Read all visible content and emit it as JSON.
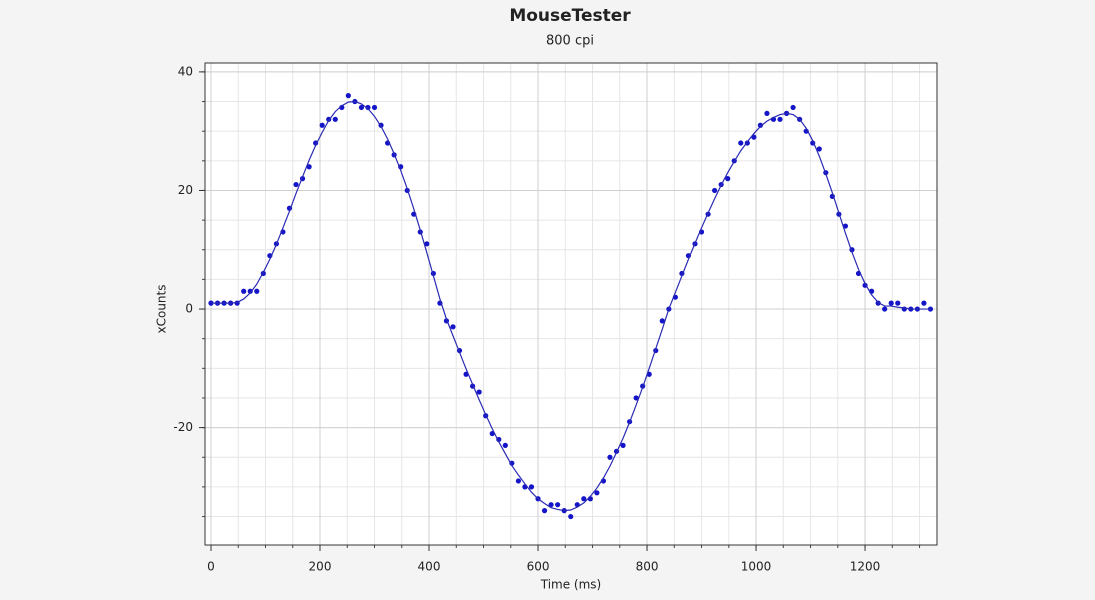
{
  "chart_data": {
    "type": "scatter",
    "title": "MouseTester",
    "subtitle": "800 cpi",
    "x_label": "Time (ms)",
    "y_label": "xCounts",
    "xlim": [
      -11,
      1332
    ],
    "ylim": [
      -39.8,
      41.5
    ],
    "xticks": [
      0,
      200,
      400,
      600,
      800,
      1000,
      1200
    ],
    "yticks": [
      -20,
      0,
      20,
      40
    ],
    "grid": true,
    "x": [
      0,
      12,
      24,
      36,
      48,
      60,
      72,
      84,
      96,
      108,
      120,
      132,
      144,
      156,
      168,
      180,
      192,
      204,
      216,
      228,
      240,
      252,
      264,
      276,
      288,
      300,
      312,
      324,
      336,
      348,
      360,
      372,
      384,
      396,
      408,
      420,
      432,
      444,
      456,
      468,
      480,
      492,
      504,
      516,
      528,
      540,
      552,
      564,
      576,
      588,
      600,
      612,
      624,
      636,
      648,
      660,
      672,
      684,
      696,
      708,
      720,
      732,
      744,
      756,
      768,
      780,
      792,
      804,
      816,
      828,
      840,
      852,
      864,
      876,
      888,
      900,
      912,
      924,
      936,
      948,
      960,
      972,
      984,
      996,
      1008,
      1020,
      1032,
      1044,
      1056,
      1068,
      1080,
      1092,
      1104,
      1116,
      1128,
      1140,
      1152,
      1164,
      1176,
      1188,
      1200,
      1212,
      1224,
      1236,
      1248,
      1260,
      1272,
      1284,
      1296,
      1308,
      1320
    ],
    "series": [
      {
        "style": "dots",
        "color": "#1414c8",
        "values": [
          1,
          1,
          1,
          1,
          1,
          3,
          3,
          3,
          6,
          9,
          11,
          13,
          17,
          21,
          22,
          24,
          28,
          31,
          32,
          32,
          34,
          36,
          35,
          34,
          34,
          34,
          31,
          28,
          26,
          24,
          20,
          16,
          13,
          11,
          6,
          1,
          -2,
          -3,
          -7,
          -11,
          -13,
          -14,
          -18,
          -21,
          -22,
          -23,
          -26,
          -29,
          -30,
          -30,
          -32,
          -34,
          -33,
          -33,
          -34,
          -35,
          -33,
          -32,
          -32,
          -31,
          -29,
          -25,
          -24,
          -23,
          -19,
          -15,
          -13,
          -11,
          -7,
          -2,
          0,
          2,
          6,
          9,
          11,
          13,
          16,
          20,
          21,
          22,
          25,
          28,
          28,
          29,
          31,
          33,
          32,
          32,
          33,
          34,
          32,
          30,
          28,
          27,
          23,
          19,
          16,
          14,
          10,
          6,
          4,
          3,
          1,
          0,
          1,
          1,
          0,
          0,
          0,
          1,
          0
        ]
      },
      {
        "style": "line",
        "color": "#2a2ab4",
        "values": [
          1,
          1,
          1,
          1,
          1.1,
          1.7,
          2.7,
          4.2,
          6.2,
          8.4,
          10.9,
          13.7,
          16.5,
          19.5,
          22.3,
          25.1,
          27.6,
          29.8,
          31.8,
          33.3,
          34.3,
          34.9,
          35,
          34.6,
          33.8,
          32.5,
          30.8,
          28.7,
          26.2,
          23.4,
          20.3,
          16.9,
          13.3,
          9.5,
          5.6,
          1.7,
          -1.7,
          -4.5,
          -7.3,
          -10.1,
          -12.7,
          -15.3,
          -17.8,
          -20.2,
          -22.4,
          -24.4,
          -26.4,
          -28,
          -29.5,
          -30.9,
          -32,
          -32.8,
          -33.5,
          -33.8,
          -34,
          -33.9,
          -33.4,
          -32.7,
          -31.6,
          -30.2,
          -28.5,
          -26.5,
          -24.2,
          -21.8,
          -19.1,
          -16.2,
          -13.2,
          -10,
          -6.7,
          -3.4,
          0,
          2.8,
          5.6,
          8.4,
          11.1,
          13.7,
          16.2,
          18.6,
          20.9,
          23,
          24.9,
          26.7,
          28.2,
          29.6,
          30.8,
          31.7,
          32.3,
          32.8,
          33,
          32.8,
          32,
          30.5,
          28.4,
          25.8,
          22.8,
          19.6,
          16.2,
          12.8,
          9.6,
          6.7,
          4.3,
          2.4,
          1.1,
          0.5,
          0.5,
          0.3,
          0.2,
          0,
          0,
          0,
          0
        ]
      }
    ]
  }
}
